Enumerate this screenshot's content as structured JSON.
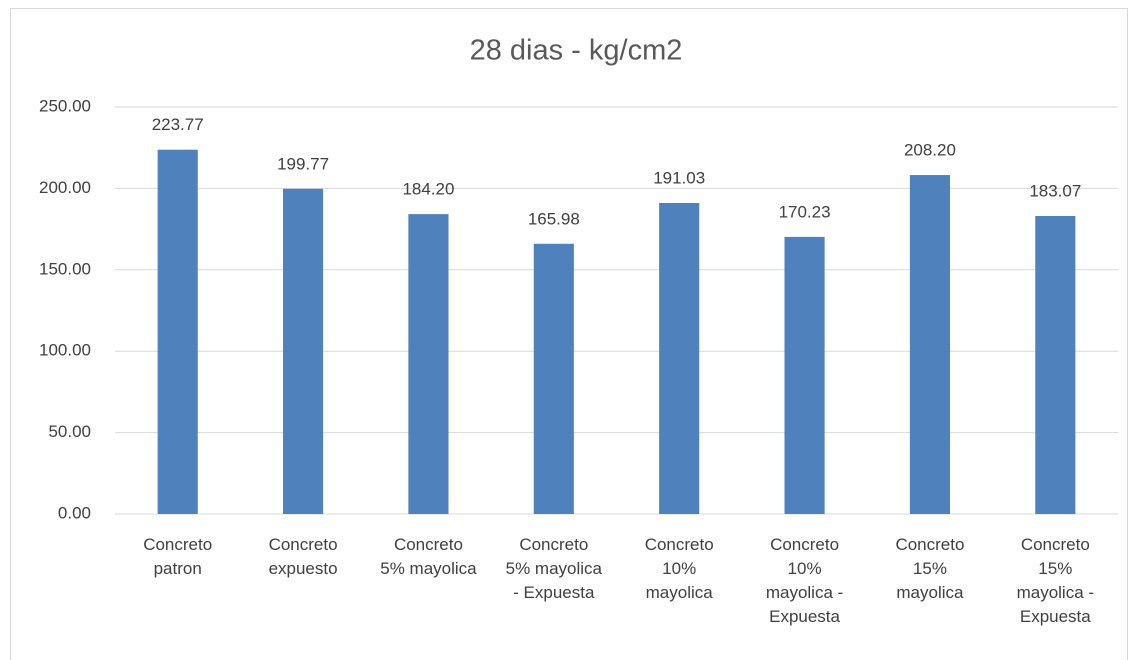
{
  "chart_data": {
    "type": "bar",
    "title": "28 dias - kg/cm2",
    "categories": [
      "Concreto patron",
      "Concreto expuesto",
      "Concreto 5% mayolica",
      "Concreto 5% mayolica - Expuesta",
      "Concreto 10% mayolica",
      "Concreto 10% mayolica - Expuesta",
      "Concreto 15% mayolica",
      "Concreto 15% mayolica - Expuesta"
    ],
    "values": [
      223.77,
      199.77,
      184.2,
      165.98,
      191.03,
      170.23,
      208.2,
      183.07
    ],
    "value_labels": [
      "223.77",
      "199.77",
      "184.20",
      "165.98",
      "191.03",
      "170.23",
      "208.20",
      "183.07"
    ],
    "color": "#4f81bd",
    "ylim": [
      0,
      250
    ],
    "yticks": [
      {
        "value": 0,
        "label": "0.00"
      },
      {
        "value": 50,
        "label": "50.00"
      },
      {
        "value": 100,
        "label": "100.00"
      },
      {
        "value": 150,
        "label": "150.00"
      },
      {
        "value": 200,
        "label": "200.00"
      },
      {
        "value": 250,
        "label": "250.00"
      }
    ],
    "grid": true
  }
}
